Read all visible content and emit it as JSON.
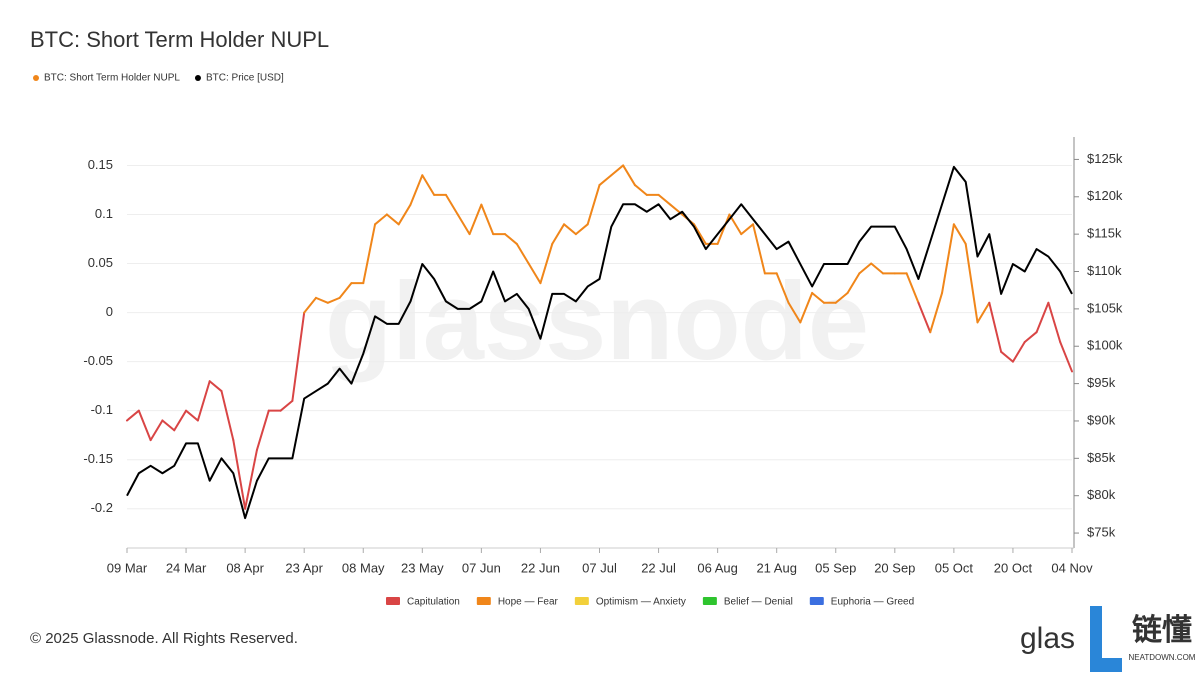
{
  "chart_data": {
    "type": "line",
    "title": "BTC: Short Term Holder NUPL",
    "categories": [
      "09 Mar",
      null,
      null,
      null,
      null,
      "24 Mar",
      null,
      null,
      null,
      null,
      "08 Apr",
      null,
      null,
      null,
      null,
      "23 Apr",
      null,
      null,
      null,
      null,
      "08 May",
      null,
      null,
      null,
      null,
      "23 May",
      null,
      null,
      null,
      null,
      "07 Jun",
      null,
      null,
      null,
      null,
      "22 Jun",
      null,
      null,
      null,
      null,
      "07 Jul",
      null,
      null,
      null,
      null,
      "22 Jul",
      null,
      null,
      null,
      null,
      "06 Aug",
      null,
      null,
      null,
      null,
      "21 Aug",
      null,
      null,
      null,
      null,
      "05 Sep",
      null,
      null,
      null,
      null,
      "20 Sep",
      null,
      null,
      null,
      null,
      "05 Oct",
      null,
      null,
      null,
      null,
      "20 Oct",
      null,
      null,
      null,
      null,
      "04 Nov"
    ],
    "series": [
      {
        "name": "BTC: Short Term Holder NUPL",
        "color": "#f0861a",
        "values": [
          -0.11,
          -0.1,
          -0.13,
          -0.11,
          -0.12,
          -0.1,
          -0.11,
          -0.07,
          -0.08,
          -0.13,
          -0.2,
          -0.14,
          -0.1,
          -0.1,
          -0.09,
          0.0,
          0.015,
          0.01,
          0.015,
          0.03,
          0.03,
          0.09,
          0.1,
          0.09,
          0.11,
          0.14,
          0.12,
          0.12,
          0.1,
          0.08,
          0.11,
          0.08,
          0.08,
          0.07,
          0.05,
          0.03,
          0.07,
          0.09,
          0.08,
          0.09,
          0.13,
          0.14,
          0.15,
          0.13,
          0.12,
          0.12,
          0.11,
          0.1,
          0.09,
          0.07,
          0.07,
          0.1,
          0.08,
          0.09,
          0.04,
          0.04,
          0.01,
          -0.01,
          0.02,
          0.01,
          0.01,
          0.02,
          0.04,
          0.05,
          0.04,
          0.04,
          0.04,
          0.01,
          -0.02,
          0.02,
          0.09,
          0.07,
          -0.01,
          0.01,
          -0.04,
          -0.05,
          -0.03,
          -0.02,
          0.01,
          -0.03,
          -0.06
        ]
      },
      {
        "name": "BTC: Price [USD]",
        "color": "#000000",
        "axis": "y2",
        "values": [
          80000,
          83000,
          84000,
          83000,
          84000,
          87000,
          87000,
          82000,
          85000,
          83000,
          77000,
          82000,
          85000,
          85000,
          85000,
          93000,
          94000,
          95000,
          97000,
          95000,
          99000,
          104000,
          103000,
          103000,
          106000,
          111000,
          109000,
          106000,
          105000,
          105000,
          106000,
          110000,
          106000,
          107000,
          105000,
          101000,
          107000,
          107000,
          106000,
          108000,
          109000,
          116000,
          119000,
          119000,
          118000,
          119000,
          117000,
          118000,
          116000,
          113000,
          115000,
          117000,
          119000,
          117000,
          115000,
          113000,
          114000,
          111000,
          108000,
          111000,
          111000,
          111000,
          114000,
          116000,
          116000,
          116000,
          113000,
          109000,
          114000,
          119000,
          124000,
          122000,
          112000,
          115000,
          107000,
          111000,
          110000,
          113000,
          112000,
          110000,
          107000
        ]
      }
    ],
    "zones": [
      {
        "name": "Capitulation",
        "color": "#d94545"
      },
      {
        "name": "Hope — Fear",
        "color": "#f0861a"
      },
      {
        "name": "Optimism — Anxiety",
        "color": "#f2d03b"
      },
      {
        "name": "Belief — Denial",
        "color": "#2ec42e"
      },
      {
        "name": "Euphoria — Greed",
        "color": "#3b6fe0"
      }
    ],
    "ylim": [
      -0.24,
      0.179
    ],
    "yticks": [
      -0.2,
      -0.15,
      -0.1,
      -0.05,
      0,
      0.05,
      0.1,
      0.15
    ],
    "y2lim": [
      73000,
      128000
    ],
    "y2ticks": [
      {
        "value": 75000,
        "label": "$75k"
      },
      {
        "value": 80000,
        "label": "$80k"
      },
      {
        "value": 85000,
        "label": "$85k"
      },
      {
        "value": 90000,
        "label": "$90k"
      },
      {
        "value": 95000,
        "label": "$95k"
      },
      {
        "value": 100000,
        "label": "$100k"
      },
      {
        "value": 105000,
        "label": "$105k"
      },
      {
        "value": 110000,
        "label": "$110k"
      },
      {
        "value": 115000,
        "label": "$115k"
      },
      {
        "value": 120000,
        "label": "$120k"
      },
      {
        "value": 125000,
        "label": "$125k"
      }
    ],
    "watermark": "glassnode",
    "copyright": "© 2025 Glassnode. All Rights Reserved."
  },
  "logo": {
    "text": "glas",
    "cn": "链懂",
    "site": "NEATDOWN.COM"
  }
}
